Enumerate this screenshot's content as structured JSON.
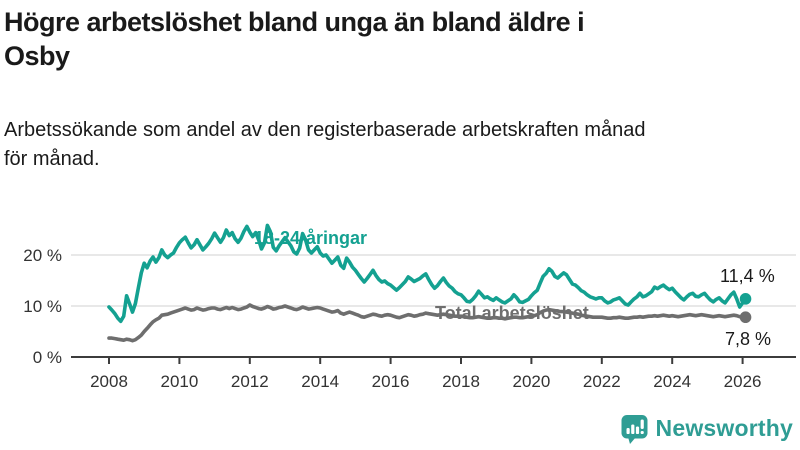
{
  "header": {
    "title_line1": "Högre arbetslöshet bland unga än bland äldre i",
    "title_line2": "Osby",
    "subtitle_line1": "Arbetssökande som andel av den registerbaserade arbetskraften månad",
    "subtitle_line2": "för månad."
  },
  "colors": {
    "young_line": "#14a191",
    "total_line": "#6e6e6e",
    "gridline": "#d9d9d9",
    "axis": "#3c3c3c",
    "tick_label": "#333333",
    "value_label": "#1a1a1a",
    "brand_teal": "#2f9d94",
    "background": "#ffffff"
  },
  "chart_data": {
    "type": "line",
    "x_start": "2008-01",
    "x_end": "2026-02",
    "x_tick_years": [
      2008,
      2010,
      2012,
      2014,
      2016,
      2018,
      2020,
      2022,
      2024,
      2026
    ],
    "y_ticks": [
      {
        "value": 0,
        "label": "0 %"
      },
      {
        "value": 10,
        "label": "10 %"
      },
      {
        "value": 20,
        "label": "20 %"
      }
    ],
    "ylim": [
      0,
      27
    ],
    "grid": "horizontal-only",
    "legend_position": "inline-labels-on-lines",
    "unit": "%",
    "series": [
      {
        "name": "18-24-åringar",
        "end_label": "11,4 %",
        "end_value": 11.4,
        "values": [
          9.8,
          9.2,
          8.5,
          7.6,
          7.0,
          8.0,
          12.0,
          10.5,
          8.8,
          10.5,
          13.5,
          16.5,
          18.4,
          17.5,
          18.8,
          19.6,
          18.6,
          19.5,
          21.0,
          20.0,
          19.5,
          20.0,
          20.4,
          21.5,
          22.4,
          23.0,
          23.5,
          22.4,
          21.4,
          22.0,
          23.0,
          22.0,
          21.0,
          21.6,
          22.3,
          23.2,
          24.3,
          23.4,
          22.5,
          23.4,
          24.9,
          23.8,
          24.4,
          23.2,
          22.5,
          23.3,
          24.6,
          25.6,
          24.5,
          23.6,
          24.4,
          23.0,
          21.2,
          22.4,
          25.8,
          24.6,
          21.5,
          20.8,
          21.8,
          22.6,
          23.4,
          22.6,
          21.8,
          20.6,
          20.2,
          21.4,
          24.2,
          23.0,
          21.0,
          20.4,
          21.0,
          21.6,
          20.4,
          19.8,
          20.0,
          19.2,
          18.4,
          19.0,
          19.6,
          18.0,
          17.4,
          19.4,
          18.6,
          17.6,
          17.0,
          16.2,
          15.4,
          14.7,
          15.4,
          16.2,
          17.0,
          16.0,
          15.2,
          14.7,
          14.9,
          14.4,
          14.1,
          13.6,
          13.1,
          13.6,
          14.2,
          14.8,
          15.7,
          15.3,
          14.8,
          15.1,
          15.4,
          15.9,
          16.3,
          15.2,
          14.2,
          13.5,
          14.0,
          14.8,
          15.5,
          14.6,
          13.9,
          13.5,
          12.8,
          12.4,
          12.2,
          11.6,
          10.9,
          10.8,
          11.3,
          12.0,
          12.9,
          12.3,
          11.6,
          11.8,
          11.4,
          11.1,
          11.6,
          11.2,
          10.8,
          10.6,
          11.0,
          11.4,
          12.2,
          11.6,
          10.8,
          10.7,
          11.0,
          11.3,
          12.0,
          12.6,
          13.1,
          14.5,
          15.8,
          16.4,
          17.3,
          16.8,
          15.8,
          15.5,
          16.0,
          16.5,
          16.1,
          15.2,
          14.3,
          14.1,
          13.6,
          13.0,
          12.7,
          12.2,
          11.8,
          11.6,
          11.4,
          11.6,
          11.6,
          11.0,
          10.6,
          10.8,
          11.2,
          11.4,
          11.6,
          11.0,
          10.4,
          10.2,
          10.8,
          11.4,
          11.8,
          12.5,
          11.8,
          12.0,
          12.4,
          12.8,
          13.7,
          13.4,
          13.8,
          14.1,
          13.6,
          13.2,
          13.5,
          12.8,
          12.2,
          11.6,
          11.2,
          11.8,
          12.3,
          12.5,
          11.9,
          11.8,
          12.2,
          12.5,
          11.8,
          11.2,
          10.8,
          11.3,
          11.6,
          11.0,
          10.6,
          11.4,
          12.2,
          12.7,
          11.4,
          9.8,
          10.6,
          11.4
        ]
      },
      {
        "name": "Total arbetslöshet",
        "end_label": "7,8 %",
        "end_value": 7.8,
        "values": [
          3.7,
          3.7,
          3.6,
          3.5,
          3.4,
          3.3,
          3.5,
          3.4,
          3.2,
          3.4,
          3.8,
          4.3,
          5.0,
          5.6,
          6.3,
          6.9,
          7.3,
          7.6,
          8.2,
          8.3,
          8.4,
          8.6,
          8.8,
          9.0,
          9.2,
          9.4,
          9.6,
          9.4,
          9.2,
          9.3,
          9.6,
          9.4,
          9.2,
          9.3,
          9.5,
          9.6,
          9.6,
          9.4,
          9.3,
          9.5,
          9.7,
          9.5,
          9.7,
          9.5,
          9.3,
          9.4,
          9.6,
          9.8,
          10.2,
          9.9,
          9.7,
          9.5,
          9.4,
          9.6,
          9.9,
          9.7,
          9.4,
          9.5,
          9.7,
          9.8,
          10.0,
          9.8,
          9.6,
          9.4,
          9.3,
          9.5,
          9.8,
          9.6,
          9.4,
          9.5,
          9.6,
          9.7,
          9.6,
          9.4,
          9.2,
          9.0,
          8.8,
          8.9,
          9.1,
          8.6,
          8.4,
          8.6,
          8.8,
          8.6,
          8.4,
          8.2,
          7.9,
          7.8,
          8.0,
          8.2,
          8.4,
          8.3,
          8.1,
          8.0,
          8.2,
          8.3,
          8.2,
          8.0,
          7.8,
          7.7,
          7.9,
          8.1,
          8.3,
          8.2,
          8.0,
          8.1,
          8.3,
          8.4,
          8.6,
          8.5,
          8.4,
          8.3,
          8.2,
          8.3,
          8.4,
          8.3,
          8.2,
          8.1,
          8.0,
          8.0,
          8.0,
          7.9,
          7.8,
          7.7,
          7.7,
          7.8,
          7.9,
          7.8,
          7.7,
          7.6,
          7.6,
          7.7,
          7.7,
          7.6,
          7.6,
          7.5,
          7.6,
          7.7,
          7.8,
          7.8,
          7.7,
          7.7,
          7.8,
          7.9,
          8.0,
          8.1,
          8.3,
          8.7,
          9.0,
          9.2,
          9.3,
          9.2,
          9.1,
          9.0,
          8.9,
          8.9,
          8.8,
          8.7,
          8.6,
          8.5,
          8.4,
          8.2,
          8.1,
          8.0,
          7.9,
          7.8,
          7.8,
          7.8,
          7.8,
          7.7,
          7.6,
          7.6,
          7.7,
          7.7,
          7.8,
          7.7,
          7.6,
          7.6,
          7.7,
          7.8,
          7.8,
          7.9,
          7.8,
          7.9,
          8.0,
          8.0,
          8.1,
          8.0,
          8.1,
          8.2,
          8.1,
          8.0,
          8.1,
          8.0,
          7.9,
          8.0,
          8.1,
          8.2,
          8.3,
          8.2,
          8.1,
          8.2,
          8.3,
          8.2,
          8.1,
          8.0,
          7.9,
          8.0,
          8.1,
          8.0,
          7.9,
          8.0,
          8.1,
          8.2,
          8.1,
          7.9,
          7.8,
          7.8
        ]
      }
    ]
  },
  "footer": {
    "brand": "Newsworthy"
  }
}
